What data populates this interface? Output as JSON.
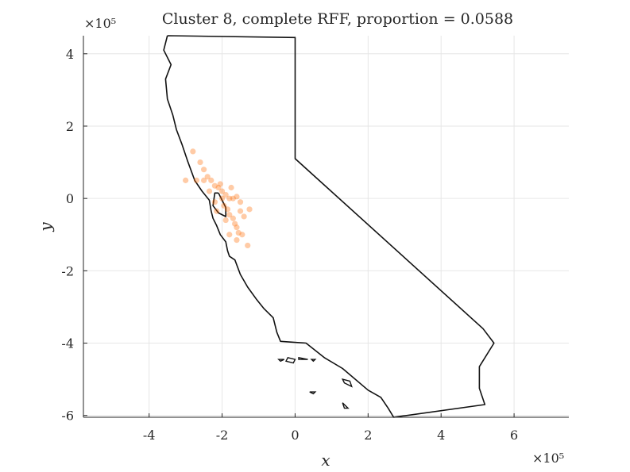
{
  "chart_data": {
    "type": "scatter",
    "title": "Cluster 8, complete RFF, proportion = 0.0588",
    "xlabel": "x",
    "ylabel": "y",
    "x_exponent_label": "×10⁵",
    "y_exponent_label": "×10⁵",
    "xlim": [
      -5.8,
      7.5
    ],
    "ylim": [
      -6.05,
      4.5
    ],
    "xticks": [
      -4,
      -2,
      0,
      2,
      4,
      6
    ],
    "yticks": [
      -6,
      -4,
      -2,
      0,
      2,
      4
    ],
    "grid": true,
    "point_color": "#ff6a00",
    "outline_color": "#111111",
    "points": [
      [
        -2.8,
        1.3
      ],
      [
        -2.6,
        1.0
      ],
      [
        -2.5,
        0.8
      ],
      [
        -2.4,
        0.6
      ],
      [
        -2.5,
        0.5
      ],
      [
        -2.3,
        0.5
      ],
      [
        -2.2,
        0.35
      ],
      [
        -2.1,
        0.3
      ],
      [
        -2.0,
        0.2
      ],
      [
        -1.9,
        0.1
      ],
      [
        -1.8,
        0.0
      ],
      [
        -1.7,
        0.0
      ],
      [
        -1.6,
        0.05
      ],
      [
        -1.5,
        -0.1
      ],
      [
        -2.0,
        0.0
      ],
      [
        -1.95,
        -0.2
      ],
      [
        -1.85,
        -0.3
      ],
      [
        -1.8,
        -0.45
      ],
      [
        -1.7,
        -0.55
      ],
      [
        -1.65,
        -0.7
      ],
      [
        -1.6,
        -0.8
      ],
      [
        -1.55,
        -0.95
      ],
      [
        -1.6,
        -1.15
      ],
      [
        -1.3,
        -1.3
      ],
      [
        -2.2,
        -0.1
      ],
      [
        -2.15,
        -0.35
      ],
      [
        -2.05,
        0.4
      ],
      [
        -1.75,
        0.3
      ],
      [
        -1.4,
        -0.5
      ],
      [
        -1.25,
        -0.3
      ],
      [
        -2.35,
        0.2
      ],
      [
        -2.7,
        0.5
      ],
      [
        -3.0,
        0.5
      ],
      [
        -1.9,
        -0.6
      ],
      [
        -1.5,
        -0.35
      ],
      [
        -1.45,
        -1.0
      ],
      [
        -1.8,
        -1.0
      ]
    ],
    "state_outline": [
      [
        -3.5,
        4.5
      ],
      [
        0.0,
        4.45
      ],
      [
        0.0,
        1.1
      ],
      [
        5.15,
        -3.6
      ],
      [
        5.45,
        -4.0
      ],
      [
        5.05,
        -4.65
      ],
      [
        5.05,
        -5.25
      ],
      [
        5.2,
        -5.7
      ],
      [
        2.7,
        -6.05
      ],
      [
        2.55,
        -5.8
      ],
      [
        2.35,
        -5.5
      ],
      [
        2.0,
        -5.3
      ],
      [
        1.3,
        -4.7
      ],
      [
        0.8,
        -4.4
      ],
      [
        0.3,
        -4.0
      ],
      [
        -0.4,
        -3.95
      ],
      [
        -0.5,
        -3.7
      ],
      [
        -0.6,
        -3.3
      ],
      [
        -0.85,
        -3.05
      ],
      [
        -1.05,
        -2.8
      ],
      [
        -1.3,
        -2.45
      ],
      [
        -1.5,
        -2.1
      ],
      [
        -1.65,
        -1.7
      ],
      [
        -1.8,
        -1.6
      ],
      [
        -1.85,
        -1.45
      ],
      [
        -1.9,
        -1.2
      ],
      [
        -2.05,
        -1.0
      ],
      [
        -2.15,
        -0.75
      ],
      [
        -2.25,
        -0.55
      ],
      [
        -2.3,
        -0.35
      ],
      [
        -2.35,
        -0.05
      ],
      [
        -2.55,
        0.2
      ],
      [
        -2.75,
        0.5
      ],
      [
        -2.95,
        1.05
      ],
      [
        -3.1,
        1.5
      ],
      [
        -3.25,
        1.9
      ],
      [
        -3.35,
        2.3
      ],
      [
        -3.5,
        2.75
      ],
      [
        -3.55,
        3.3
      ],
      [
        -3.4,
        3.7
      ],
      [
        -3.6,
        4.1
      ],
      [
        -3.5,
        4.5
      ]
    ],
    "bay_outline": [
      [
        -2.1,
        0.15
      ],
      [
        -1.9,
        -0.25
      ],
      [
        -1.9,
        -0.5
      ],
      [
        -2.1,
        -0.4
      ],
      [
        -2.25,
        -0.2
      ],
      [
        -2.2,
        0.15
      ],
      [
        -2.1,
        0.15
      ]
    ],
    "islands": [
      [
        [
          -0.45,
          -4.45
        ],
        [
          -0.3,
          -4.45
        ],
        [
          -0.4,
          -4.5
        ],
        [
          -0.45,
          -4.45
        ]
      ],
      [
        [
          -0.2,
          -4.4
        ],
        [
          0.0,
          -4.45
        ],
        [
          -0.05,
          -4.55
        ],
        [
          -0.25,
          -4.5
        ],
        [
          -0.2,
          -4.4
        ]
      ],
      [
        [
          0.1,
          -4.4
        ],
        [
          0.35,
          -4.45
        ],
        [
          0.1,
          -4.45
        ],
        [
          0.1,
          -4.4
        ]
      ],
      [
        [
          0.45,
          -4.45
        ],
        [
          0.55,
          -4.45
        ],
        [
          0.5,
          -4.5
        ],
        [
          0.45,
          -4.45
        ]
      ],
      [
        [
          1.3,
          -5.0
        ],
        [
          1.5,
          -5.05
        ],
        [
          1.55,
          -5.2
        ],
        [
          1.35,
          -5.1
        ],
        [
          1.3,
          -5.0
        ]
      ],
      [
        [
          0.4,
          -5.35
        ],
        [
          0.55,
          -5.35
        ],
        [
          0.5,
          -5.4
        ],
        [
          0.4,
          -5.35
        ]
      ],
      [
        [
          1.3,
          -5.65
        ],
        [
          1.45,
          -5.8
        ],
        [
          1.35,
          -5.8
        ],
        [
          1.3,
          -5.65
        ]
      ]
    ]
  }
}
